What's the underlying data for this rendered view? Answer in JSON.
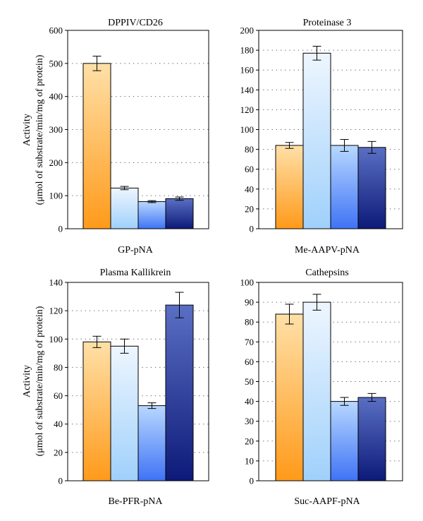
{
  "figure": {
    "ylabel_line1": "Activity",
    "ylabel_line2": "(μmol of substrate/min/mg of protein)"
  },
  "colors": {
    "series_gradients": [
      [
        "#ffe0a8",
        "#ff9a1a"
      ],
      [
        "#eef6ff",
        "#9fd0fb"
      ],
      [
        "#b8d8ff",
        "#3f73f5"
      ],
      [
        "#5a6fc4",
        "#0d1a78"
      ]
    ],
    "gridline": "#555555",
    "axis": "#000000"
  },
  "chart_data": [
    {
      "type": "bar",
      "title": "DPPIV/CD26",
      "xlabel": "GP-pNA",
      "ylim": [
        0,
        600
      ],
      "yticks": [
        0,
        100,
        200,
        300,
        400,
        500,
        600
      ],
      "grid": true,
      "values": [
        500,
        123,
        82,
        91
      ],
      "errors": [
        22,
        5,
        3,
        5
      ]
    },
    {
      "type": "bar",
      "title": "Proteinase 3",
      "xlabel": "Me-AAPV-pNA",
      "ylim": [
        0,
        200
      ],
      "yticks": [
        0,
        20,
        40,
        60,
        80,
        100,
        120,
        140,
        160,
        180,
        200
      ],
      "grid": true,
      "values": [
        84,
        177,
        84,
        82
      ],
      "errors": [
        3,
        7,
        6,
        6
      ]
    },
    {
      "type": "bar",
      "title": "Plasma Kallikrein",
      "xlabel": "Be-PFR-pNA",
      "ylim": [
        0,
        140
      ],
      "yticks": [
        0,
        20,
        40,
        60,
        80,
        100,
        120,
        140
      ],
      "grid": true,
      "values": [
        98,
        95,
        53,
        124
      ],
      "errors": [
        4,
        5,
        2,
        9
      ]
    },
    {
      "type": "bar",
      "title": "Cathepsins",
      "xlabel": "Suc-AAPF-pNA",
      "ylim": [
        0,
        100
      ],
      "yticks": [
        0,
        10,
        20,
        30,
        40,
        50,
        60,
        70,
        80,
        90,
        100
      ],
      "grid": true,
      "values": [
        84,
        90,
        40,
        42
      ],
      "errors": [
        5,
        4,
        2,
        2
      ]
    }
  ]
}
